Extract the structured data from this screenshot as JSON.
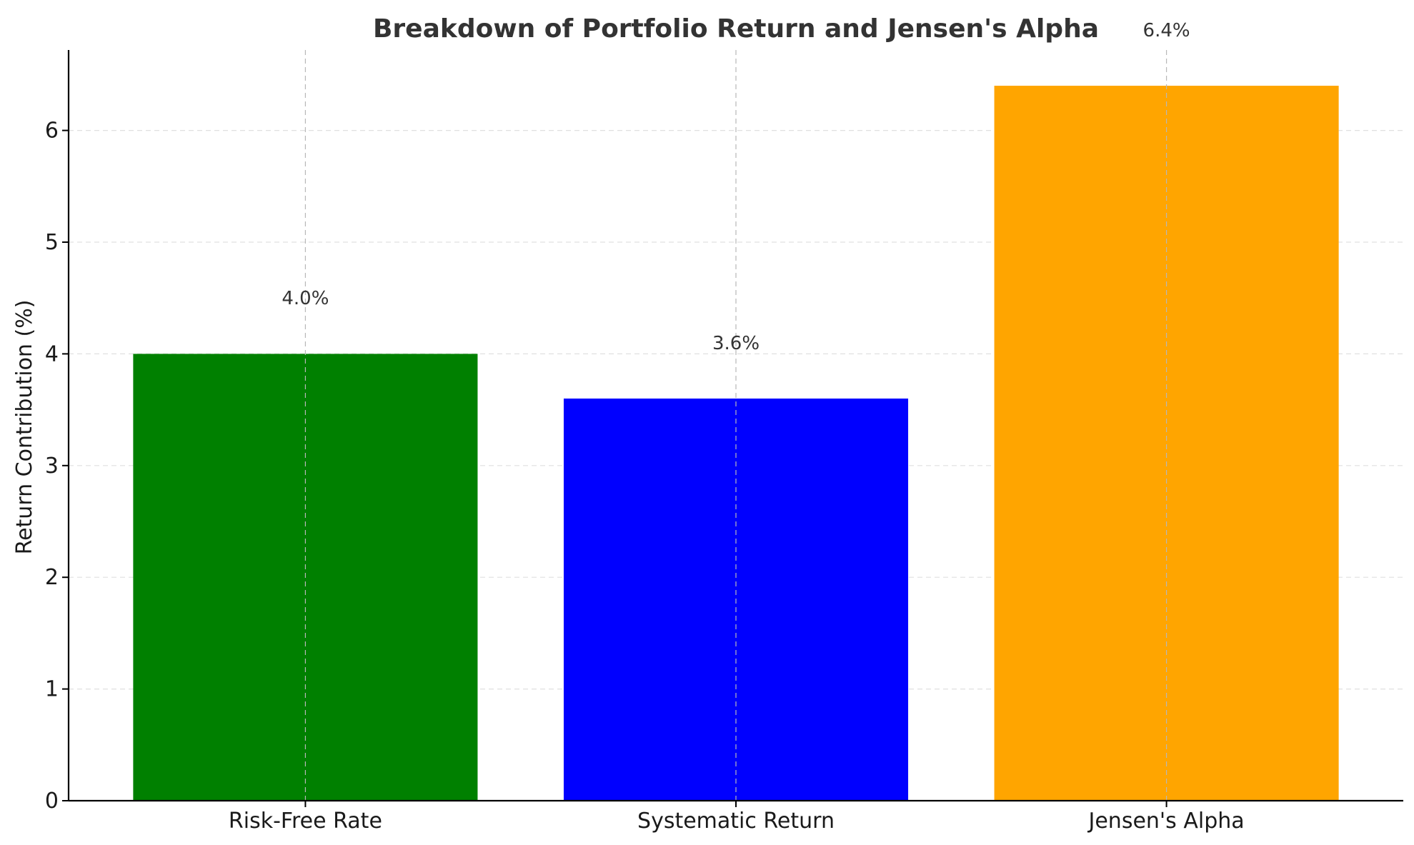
{
  "chart_data": {
    "type": "bar",
    "title": "Breakdown of Portfolio Return and Jensen's Alpha",
    "xlabel": "",
    "ylabel": "Return Contribution (%)",
    "categories": [
      "Risk-Free Rate",
      "Systematic Return",
      "Jensen's Alpha"
    ],
    "values": [
      4.0,
      3.6,
      6.4
    ],
    "data_labels": [
      "4.0%",
      "3.6%",
      "6.4%"
    ],
    "colors": [
      "#008000",
      "#0000ff",
      "#ffa500"
    ],
    "ylim": [
      0,
      6.72
    ],
    "yticks": [
      0,
      1,
      2,
      3,
      4,
      5,
      6
    ],
    "grid": true,
    "legend": "none"
  }
}
